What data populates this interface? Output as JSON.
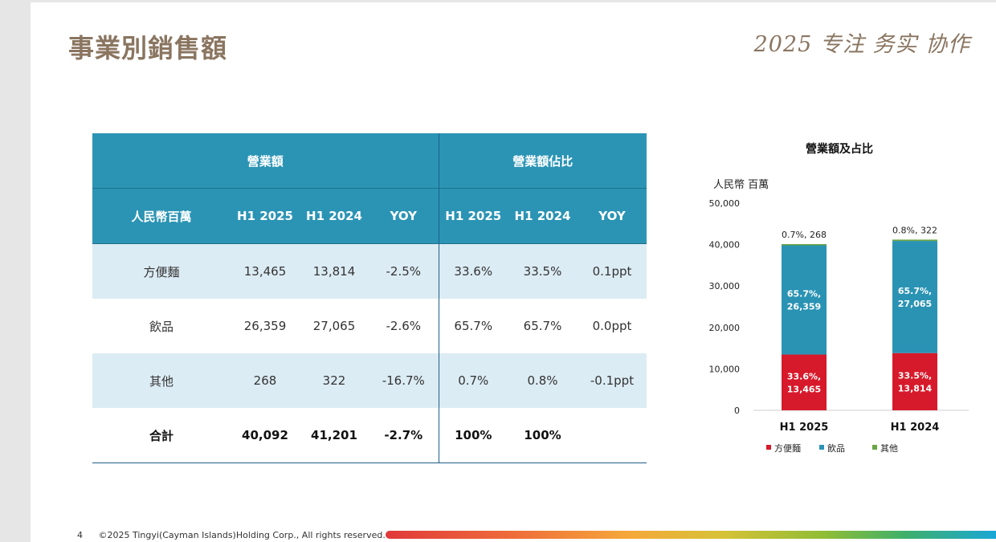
{
  "page": {
    "title": "事業別銷售額",
    "slogan": "2025 专注 务实 协作",
    "page_number": "4",
    "copyright": "©2025 Tingyi(Cayman Islands)Holding Corp., All rights reserved."
  },
  "table": {
    "group_headers": [
      "營業額",
      "營業額佔比"
    ],
    "unit_header": "人民幣百萬",
    "col_headers": [
      "H1 2025",
      "H1 2024",
      "YOY",
      "H1 2025",
      "H1 2024",
      "YOY"
    ],
    "rows": [
      {
        "label": "方便麵",
        "cells": [
          "13,465",
          "13,814",
          "-2.5%",
          "33.6%",
          "33.5%",
          "0.1ppt"
        ]
      },
      {
        "label": "飲品",
        "cells": [
          "26,359",
          "27,065",
          "-2.6%",
          "65.7%",
          "65.7%",
          "0.0ppt"
        ]
      },
      {
        "label": "其他",
        "cells": [
          "268",
          "322",
          "-16.7%",
          "0.7%",
          "0.8%",
          "-0.1ppt"
        ]
      }
    ],
    "total": {
      "label": "合計",
      "cells": [
        "40,092",
        "41,201",
        "-2.7%",
        "100%",
        "100%",
        ""
      ]
    }
  },
  "chart_data": {
    "type": "bar",
    "stacked": true,
    "title": "營業額及占比",
    "ylabel": "人民幣 百萬",
    "ylim": [
      0,
      50000
    ],
    "yticks": [
      0,
      10000,
      20000,
      30000,
      40000,
      50000
    ],
    "ytick_labels": [
      "0",
      "10,000",
      "20,000",
      "30,000",
      "40,000",
      "50,000"
    ],
    "categories": [
      "H1 2025",
      "H1 2024"
    ],
    "legend_position": "bottom",
    "series": [
      {
        "name": "方便麵",
        "color": "#d71a2b",
        "values": [
          13465,
          13814
        ],
        "labels": [
          [
            "33.6%,",
            "13,465"
          ],
          [
            "33.5%,",
            "13,814"
          ]
        ]
      },
      {
        "name": "飲品",
        "color": "#2a93b4",
        "values": [
          26359,
          27065
        ],
        "labels": [
          [
            "65.7%,",
            "26,359"
          ],
          [
            "65.7%,",
            "27,065"
          ]
        ]
      },
      {
        "name": "其他",
        "color": "#6aa544",
        "values": [
          268,
          322
        ],
        "labels": [
          [
            "0.7%, 268"
          ],
          [
            "0.8%, 322"
          ]
        ]
      }
    ]
  },
  "colors": {
    "header_blue": "#2b94b5",
    "row_alt": "#dcecf4",
    "title_brown": "#8a7560"
  }
}
